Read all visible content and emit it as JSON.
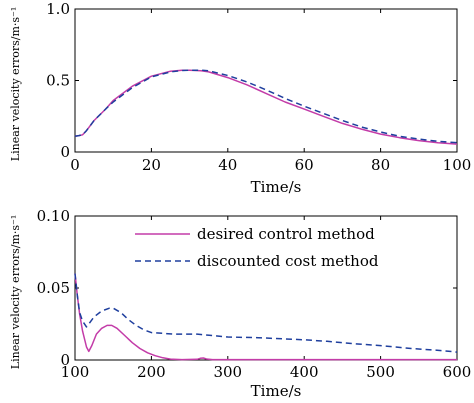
{
  "chart_data": [
    {
      "type": "line",
      "title": "",
      "xlabel": "Time/s",
      "ylabel": "Linear velocity errors/m·s⁻¹",
      "xlim": [
        0,
        100
      ],
      "ylim": [
        0,
        1.0
      ],
      "x_ticks": [
        0,
        20,
        40,
        60,
        80,
        100
      ],
      "y_ticks": [
        0,
        0.5,
        1.0
      ],
      "x_tick_labels": [
        "0",
        "20",
        "40",
        "60",
        "80",
        "100"
      ],
      "y_tick_labels": [
        "0",
        "0.5",
        "1.0"
      ],
      "grid": false,
      "series": [
        {
          "name": "desired control method",
          "color": "#c33ca8",
          "style": "solid",
          "x": [
            0,
            1,
            2,
            3,
            5,
            8,
            10,
            15,
            20,
            25,
            28,
            30,
            33,
            35,
            40,
            45,
            50,
            55,
            60,
            65,
            70,
            75,
            80,
            85,
            90,
            95,
            100
          ],
          "y": [
            0.11,
            0.115,
            0.12,
            0.15,
            0.22,
            0.3,
            0.36,
            0.46,
            0.53,
            0.565,
            0.572,
            0.572,
            0.568,
            0.56,
            0.52,
            0.47,
            0.41,
            0.35,
            0.3,
            0.25,
            0.2,
            0.16,
            0.125,
            0.1,
            0.08,
            0.065,
            0.055
          ]
        },
        {
          "name": "discounted cost method",
          "color": "#1f3f9e",
          "style": "dashed",
          "x": [
            0,
            1,
            2,
            3,
            5,
            8,
            10,
            15,
            20,
            25,
            28,
            30,
            33,
            35,
            40,
            45,
            50,
            55,
            60,
            65,
            70,
            75,
            80,
            85,
            90,
            95,
            100
          ],
          "y": [
            0.11,
            0.115,
            0.12,
            0.15,
            0.22,
            0.3,
            0.35,
            0.45,
            0.525,
            0.56,
            0.57,
            0.572,
            0.572,
            0.568,
            0.535,
            0.49,
            0.435,
            0.375,
            0.32,
            0.27,
            0.22,
            0.175,
            0.14,
            0.11,
            0.09,
            0.075,
            0.065
          ]
        }
      ]
    },
    {
      "type": "line",
      "title": "",
      "xlabel": "Time/s",
      "ylabel": "Linear velocity errors/m·s⁻¹",
      "xlim": [
        100,
        600
      ],
      "ylim": [
        0,
        0.1
      ],
      "x_ticks": [
        100,
        200,
        300,
        400,
        500,
        600
      ],
      "y_ticks": [
        0,
        0.05,
        0.1
      ],
      "x_tick_labels": [
        "100",
        "200",
        "300",
        "400",
        "500",
        "600"
      ],
      "y_tick_labels": [
        "0",
        "0.05",
        "0.10"
      ],
      "grid": false,
      "legend": "top-right",
      "series": [
        {
          "name": "desired control method",
          "color": "#c33ca8",
          "style": "solid",
          "x": [
            100,
            103,
            106,
            110,
            115,
            118,
            122,
            128,
            135,
            142,
            148,
            155,
            165,
            175,
            185,
            195,
            205,
            215,
            225,
            240,
            260,
            264,
            268,
            272,
            280,
            320,
            400,
            500,
            600
          ],
          "y": [
            0.06,
            0.045,
            0.032,
            0.02,
            0.009,
            0.006,
            0.01,
            0.018,
            0.022,
            0.024,
            0.024,
            0.022,
            0.017,
            0.012,
            0.008,
            0.005,
            0.003,
            0.0015,
            0.0006,
            0.0003,
            0.0005,
            0.0012,
            0.0014,
            0.0007,
            0.0003,
            0.0003,
            0.0003,
            0.0003,
            0.0003
          ]
        },
        {
          "name": "discounted cost method",
          "color": "#1f3f9e",
          "style": "dashed",
          "x": [
            100,
            103,
            106,
            110,
            115,
            118,
            125,
            135,
            145,
            150,
            160,
            170,
            180,
            190,
            200,
            230,
            260,
            300,
            340,
            380,
            400,
            430,
            460,
            500,
            540,
            580,
            600
          ],
          "y": [
            0.06,
            0.045,
            0.033,
            0.027,
            0.023,
            0.025,
            0.03,
            0.034,
            0.036,
            0.036,
            0.033,
            0.028,
            0.024,
            0.021,
            0.019,
            0.018,
            0.018,
            0.016,
            0.0155,
            0.0145,
            0.014,
            0.013,
            0.0115,
            0.01,
            0.008,
            0.0065,
            0.0055
          ]
        }
      ]
    }
  ]
}
